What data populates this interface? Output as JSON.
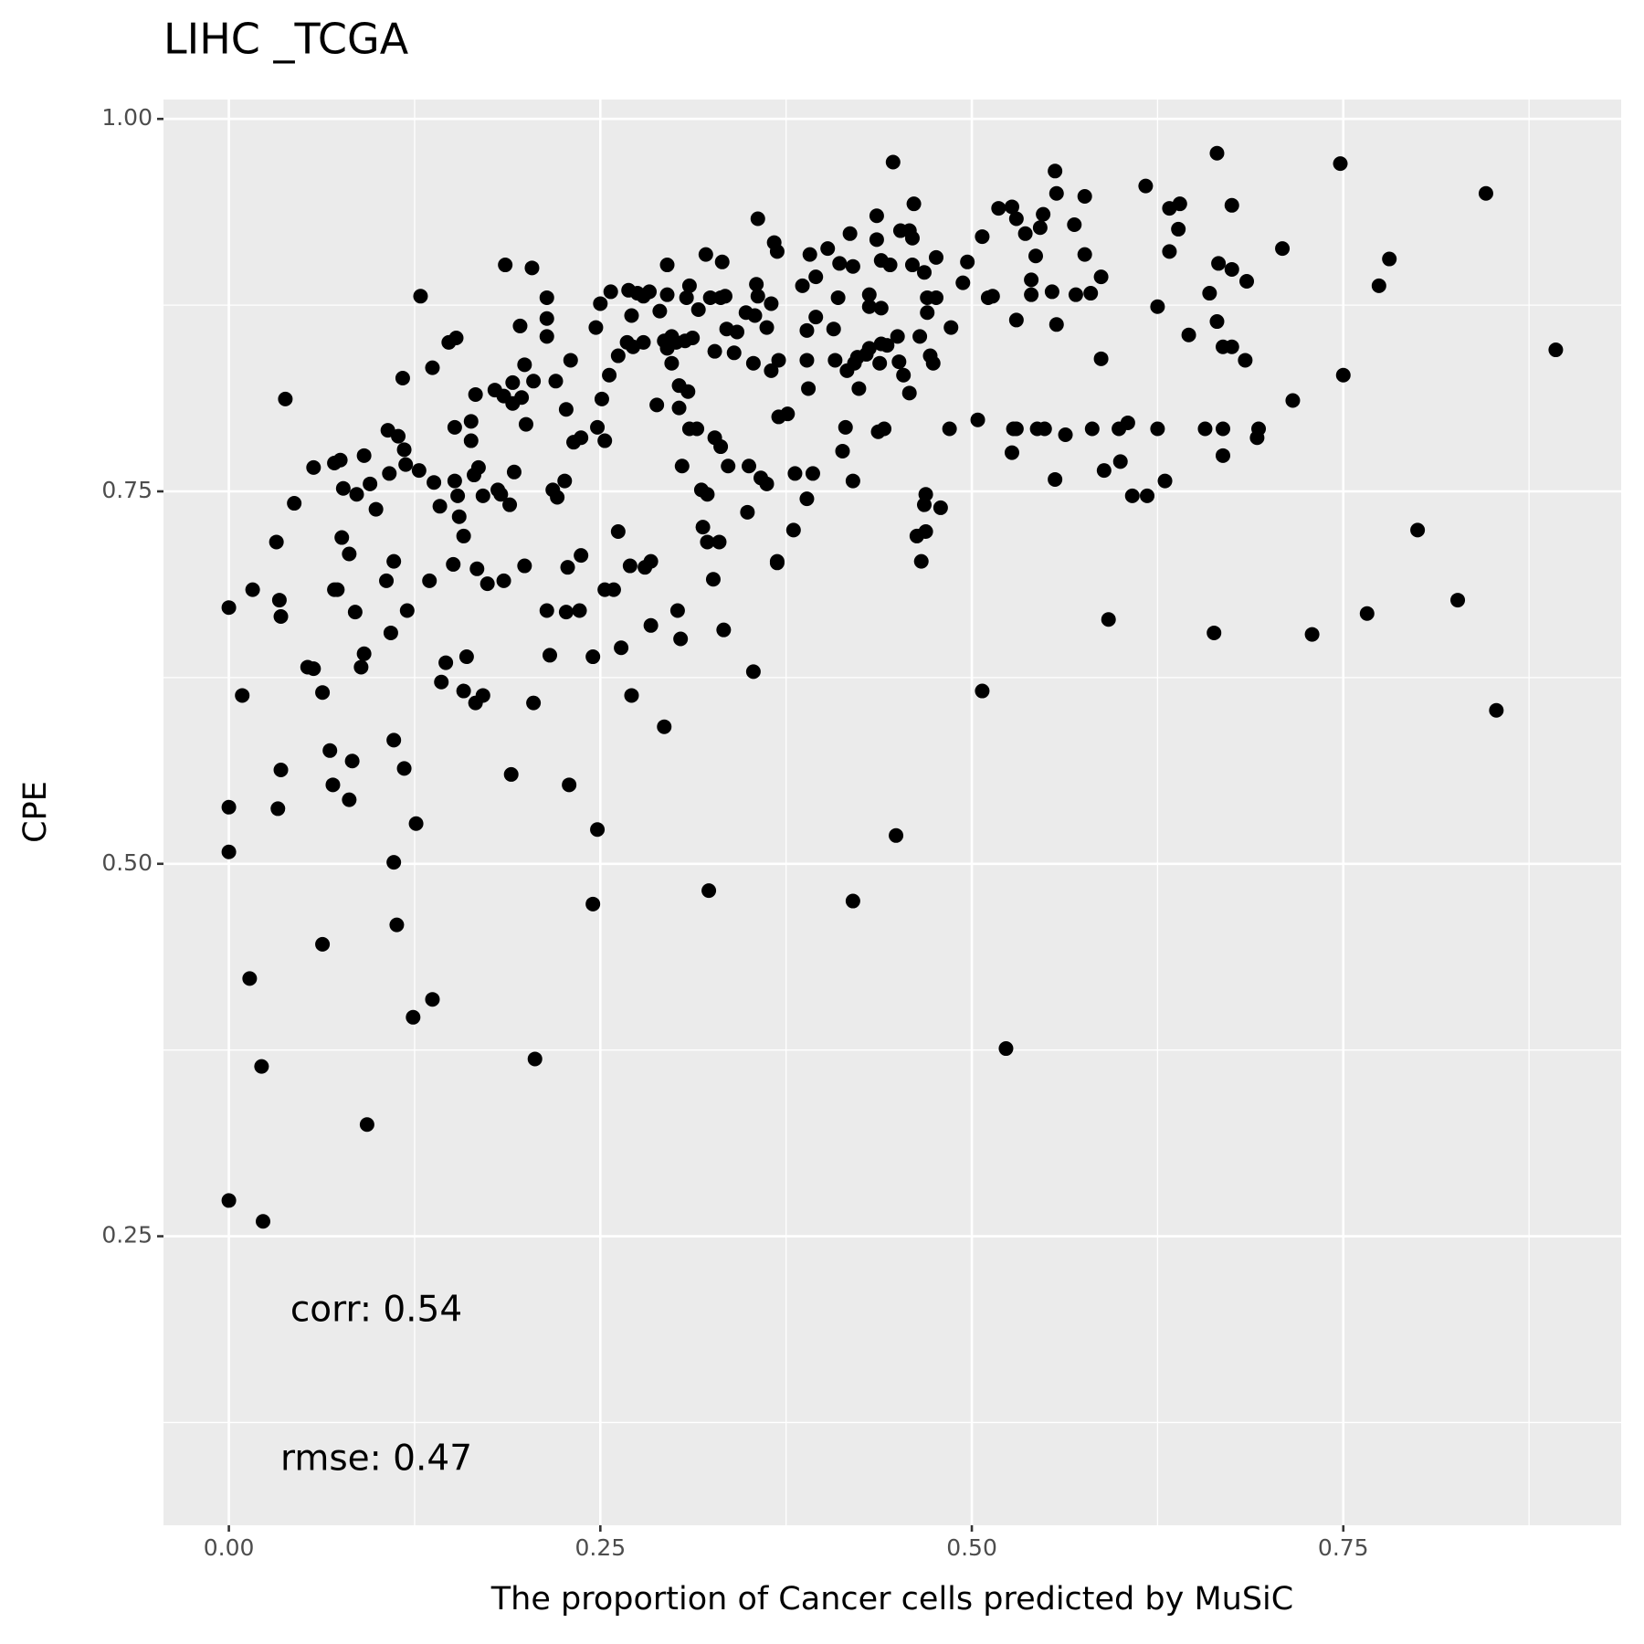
{
  "chart_data": {
    "type": "scatter",
    "title": "LIHC _TCGA",
    "x_label": "The proportion of Cancer cells predicted by MuSiC",
    "y_label": "CPE",
    "annotations": [
      "corr: 0.54",
      "rmse: 0.47"
    ],
    "color": "#000000",
    "grid": true,
    "xlim": [
      -0.044,
      0.937
    ],
    "ylim": [
      0.056,
      1.013
    ],
    "xticks": [
      {
        "value": 0,
        "label": "0.00"
      },
      0.25,
      {
        "value": 0.5,
        "label": "0.50"
      },
      0.75
    ],
    "yticks": [
      0.25,
      {
        "value": 0.5,
        "label": "0.50"
      },
      0.75,
      {
        "value": 1,
        "label": "1.00"
      }
    ],
    "xminor": [
      0.125,
      0.375,
      0.625,
      0.875
    ],
    "yminor": [
      0.125,
      0.375,
      0.625,
      0.875
    ],
    "x": [
      0,
      0,
      0,
      0,
      0.009,
      0.014,
      0.016,
      0.022,
      0.023,
      0.032,
      0.034,
      0.035,
      0.035,
      0.033,
      0.038,
      0.044,
      0.053,
      0.057,
      0.057,
      0.063,
      0.063,
      0.068,
      0.07,
      0.071,
      0.071,
      0.073,
      0.075,
      0.076,
      0.077,
      0.081,
      0.081,
      0.083,
      0.085,
      0.086,
      0.089,
      0.091,
      0.091,
      0.093,
      0.095,
      0.099,
      0.106,
      0.107,
      0.108,
      0.109,
      0.111,
      0.111,
      0.111,
      0.113,
      0.114,
      0.117,
      0.118,
      0.118,
      0.119,
      0.12,
      0.124,
      0.126,
      0.128,
      0.129,
      0.135,
      0.137,
      0.137,
      0.138,
      0.142,
      0.143,
      0.146,
      0.148,
      0.151,
      0.152,
      0.153,
      0.152,
      0.154,
      0.155,
      0.158,
      0.158,
      0.16,
      0.163,
      0.163,
      0.165,
      0.167,
      0.166,
      0.166,
      0.168,
      0.171,
      0.171,
      0.174,
      0.179,
      0.181,
      0.183,
      0.185,
      0.185,
      0.186,
      0.189,
      0.191,
      0.19,
      0.191,
      0.192,
      0.196,
      0.197,
      0.199,
      0.199,
      0.2,
      0.204,
      0.205,
      0.205,
      0.206,
      0.214,
      0.214,
      0.214,
      0.214,
      0.216,
      0.218,
      0.221,
      0.22,
      0.226,
      0.227,
      0.227,
      0.228,
      0.23,
      0.229,
      0.232,
      0.236,
      0.237,
      0.237,
      0.245,
      0.245,
      0.247,
      0.248,
      0.248,
      0.25,
      0.251,
      0.253,
      0.253,
      0.256,
      0.257,
      0.259,
      0.262,
      0.262,
      0.264,
      0.268,
      0.269,
      0.27,
      0.271,
      0.271,
      0.272,
      0.275,
      0.279,
      0.28,
      0.279,
      0.283,
      0.284,
      0.284,
      0.288,
      0.29,
      0.293,
      0.293,
      0.295,
      0.295,
      0.295,
      0.298,
      0.298,
      0.301,
      0.302,
      0.303,
      0.303,
      0.304,
      0.305,
      0.307,
      0.308,
      0.309,
      0.31,
      0.31,
      0.312,
      0.315,
      0.316,
      0.318,
      0.319,
      0.322,
      0.321,
      0.322,
      0.323,
      0.324,
      0.326,
      0.327,
      0.327,
      0.33,
      0.331,
      0.331,
      0.332,
      0.333,
      0.334,
      0.335,
      0.336,
      0.34,
      0.342,
      0.348,
      0.349,
      0.35,
      0.353,
      0.353,
      0.354,
      0.355,
      0.356,
      0.356,
      0.358,
      0.362,
      0.362,
      0.365,
      0.365,
      0.367,
      0.369,
      0.369,
      0.37,
      0.369,
      0.37,
      0.376,
      0.38,
      0.381,
      0.386,
      0.389,
      0.389,
      0.389,
      0.39,
      0.391,
      0.393,
      0.395,
      0.395,
      0.403,
      0.407,
      0.408,
      0.41,
      0.411,
      0.413,
      0.415,
      0.416,
      0.418,
      0.42,
      0.42,
      0.42,
      0.421,
      0.423,
      0.424,
      0.429,
      0.431,
      0.431,
      0.431,
      0.436,
      0.436,
      0.437,
      0.438,
      0.439,
      0.439,
      0.439,
      0.441,
      0.443,
      0.445,
      0.447,
      0.45,
      0.449,
      0.451,
      0.452,
      0.454,
      0.458,
      0.458,
      0.46,
      0.46,
      0.461,
      0.463,
      0.465,
      0.466,
      0.468,
      0.468,
      0.469,
      0.469,
      0.47,
      0.47,
      0.472,
      0.474,
      0.476,
      0.476,
      0.479,
      0.485,
      0.486,
      0.494,
      0.497,
      0.504,
      0.507,
      0.507,
      0.511,
      0.514,
      0.518,
      0.523,
      0.527,
      0.528,
      0.527,
      0.53,
      0.53,
      0.53,
      0.536,
      0.54,
      0.54,
      0.543,
      0.544,
      0.546,
      0.548,
      0.549,
      0.554,
      0.556,
      0.556,
      0.557,
      0.557,
      0.563,
      0.569,
      0.57,
      0.576,
      0.576,
      0.58,
      0.581,
      0.587,
      0.587,
      0.589,
      0.592,
      0.599,
      0.6,
      0.605,
      0.608,
      0.617,
      0.618,
      0.625,
      0.625,
      0.63,
      0.633,
      0.633,
      0.639,
      0.64,
      0.646,
      0.657,
      0.66,
      0.663,
      0.665,
      0.665,
      0.666,
      0.669,
      0.669,
      0.669,
      0.675,
      0.675,
      0.675,
      0.684,
      0.685,
      0.692,
      0.693,
      0.709,
      0.716,
      0.729,
      0.748,
      0.75,
      0.766,
      0.774,
      0.781,
      0.8,
      0.827,
      0.846,
      0.853,
      0.893
    ],
    "values": [
      0.672,
      0.538,
      0.508,
      0.274,
      0.613,
      0.423,
      0.684,
      0.364,
      0.26,
      0.716,
      0.677,
      0.666,
      0.563,
      0.537,
      0.812,
      0.742,
      0.632,
      0.631,
      0.766,
      0.615,
      0.446,
      0.576,
      0.553,
      0.769,
      0.684,
      0.684,
      0.771,
      0.719,
      0.752,
      0.708,
      0.543,
      0.569,
      0.669,
      0.748,
      0.632,
      0.641,
      0.774,
      0.325,
      0.755,
      0.738,
      0.69,
      0.791,
      0.762,
      0.655,
      0.703,
      0.583,
      0.501,
      0.459,
      0.787,
      0.826,
      0.564,
      0.778,
      0.768,
      0.67,
      0.397,
      0.527,
      0.764,
      0.881,
      0.69,
      0.833,
      0.409,
      0.756,
      0.74,
      0.622,
      0.635,
      0.85,
      0.701,
      0.757,
      0.853,
      0.793,
      0.747,
      0.733,
      0.72,
      0.616,
      0.639,
      0.784,
      0.797,
      0.761,
      0.698,
      0.608,
      0.815,
      0.766,
      0.613,
      0.747,
      0.688,
      0.818,
      0.751,
      0.748,
      0.814,
      0.69,
      0.902,
      0.741,
      0.823,
      0.56,
      0.809,
      0.763,
      0.861,
      0.813,
      0.835,
      0.7,
      0.795,
      0.9,
      0.824,
      0.608,
      0.369,
      0.88,
      0.866,
      0.854,
      0.67,
      0.64,
      0.751,
      0.746,
      0.824,
      0.757,
      0.805,
      0.669,
      0.699,
      0.838,
      0.553,
      0.783,
      0.67,
      0.786,
      0.707,
      0.639,
      0.473,
      0.86,
      0.793,
      0.523,
      0.876,
      0.812,
      0.784,
      0.684,
      0.828,
      0.884,
      0.684,
      0.723,
      0.841,
      0.645,
      0.85,
      0.885,
      0.7,
      0.613,
      0.868,
      0.847,
      0.883,
      0.85,
      0.699,
      0.881,
      0.884,
      0.66,
      0.703,
      0.808,
      0.871,
      0.592,
      0.851,
      0.902,
      0.882,
      0.846,
      0.836,
      0.854,
      0.85,
      0.67,
      0.821,
      0.806,
      0.651,
      0.767,
      0.851,
      0.88,
      0.817,
      0.792,
      0.888,
      0.853,
      0.792,
      0.872,
      0.751,
      0.726,
      0.748,
      0.909,
      0.716,
      0.482,
      0.88,
      0.691,
      0.786,
      0.844,
      0.716,
      0.88,
      0.78,
      0.904,
      0.657,
      0.881,
      0.859,
      0.767,
      0.843,
      0.857,
      0.87,
      0.736,
      0.767,
      0.629,
      0.836,
      0.868,
      0.889,
      0.933,
      0.881,
      0.759,
      0.86,
      0.755,
      0.831,
      0.876,
      0.917,
      0.702,
      0.911,
      0.838,
      0.703,
      0.8,
      0.802,
      0.724,
      0.762,
      0.888,
      0.745,
      0.838,
      0.858,
      0.819,
      0.909,
      0.762,
      0.894,
      0.867,
      0.913,
      0.859,
      0.838,
      0.88,
      0.903,
      0.777,
      0.793,
      0.831,
      0.923,
      0.901,
      0.475,
      0.757,
      0.836,
      0.84,
      0.819,
      0.842,
      0.882,
      0.874,
      0.846,
      0.935,
      0.919,
      0.79,
      0.836,
      0.873,
      0.905,
      0.849,
      0.792,
      0.848,
      0.902,
      0.971,
      0.854,
      0.519,
      0.837,
      0.925,
      0.828,
      0.816,
      0.925,
      0.92,
      0.902,
      0.943,
      0.72,
      0.854,
      0.703,
      0.897,
      0.741,
      0.723,
      0.748,
      0.87,
      0.88,
      0.841,
      0.836,
      0.88,
      0.907,
      0.739,
      0.792,
      0.86,
      0.89,
      0.904,
      0.798,
      0.921,
      0.616,
      0.88,
      0.881,
      0.94,
      0.376,
      0.941,
      0.792,
      0.776,
      0.792,
      0.865,
      0.933,
      0.923,
      0.882,
      0.892,
      0.908,
      0.792,
      0.927,
      0.936,
      0.792,
      0.884,
      0.965,
      0.758,
      0.95,
      0.862,
      0.788,
      0.929,
      0.882,
      0.948,
      0.909,
      0.883,
      0.792,
      0.839,
      0.894,
      0.764,
      0.664,
      0.792,
      0.77,
      0.796,
      0.747,
      0.955,
      0.747,
      0.792,
      0.874,
      0.757,
      0.94,
      0.911,
      0.926,
      0.943,
      0.855,
      0.792,
      0.883,
      0.655,
      0.977,
      0.864,
      0.903,
      0.792,
      0.774,
      0.847,
      0.899,
      0.942,
      0.847,
      0.838,
      0.891,
      0.786,
      0.792,
      0.913,
      0.811,
      0.654,
      0.97,
      0.828,
      0.668,
      0.888,
      0.906,
      0.724,
      0.677,
      0.95,
      0.603,
      0.845
    ]
  }
}
